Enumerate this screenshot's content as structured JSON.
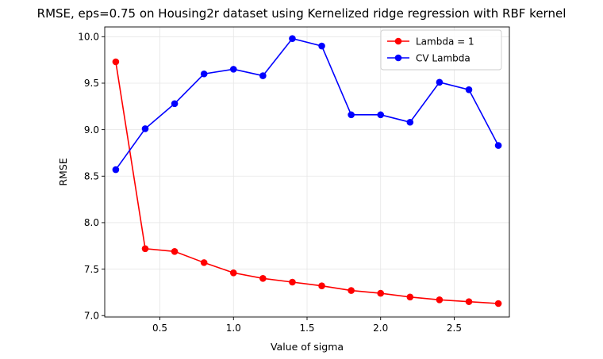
{
  "chart_data": {
    "type": "line",
    "title": "RMSE, eps=0.75 on Housing2r dataset using Kernelized ridge regression with RBF kernel",
    "xlabel": "Value of sigma",
    "ylabel": "RMSE",
    "xlim": [
      0.125,
      2.875
    ],
    "ylim": [
      6.985,
      10.105
    ],
    "xticks": [
      0.5,
      1.0,
      1.5,
      2.0,
      2.5
    ],
    "xtick_labels": [
      "0.5",
      "1.0",
      "1.5",
      "2.0",
      "2.5"
    ],
    "yticks": [
      7.0,
      7.5,
      8.0,
      8.5,
      9.0,
      9.5,
      10.0
    ],
    "ytick_labels": [
      "7.0",
      "7.5",
      "8.0",
      "8.5",
      "9.0",
      "9.5",
      "10.0"
    ],
    "grid": true,
    "legend_position": "top-right",
    "x": [
      0.2,
      0.4,
      0.6,
      0.8,
      1.0,
      1.2,
      1.4,
      1.6,
      1.8,
      2.0,
      2.2,
      2.4,
      2.6,
      2.8
    ],
    "series": [
      {
        "name": "Lambda = 1",
        "color": "#ff0000",
        "marker": "circle",
        "values": [
          9.73,
          7.72,
          7.69,
          7.57,
          7.46,
          7.4,
          7.36,
          7.32,
          7.27,
          7.24,
          7.2,
          7.17,
          7.15,
          7.13
        ]
      },
      {
        "name": "CV Lambda",
        "color": "#0000ff",
        "marker": "circle",
        "values": [
          8.57,
          9.01,
          9.28,
          9.6,
          9.65,
          9.58,
          9.98,
          9.9,
          9.16,
          9.16,
          9.08,
          9.51,
          9.43,
          8.83
        ]
      }
    ]
  }
}
